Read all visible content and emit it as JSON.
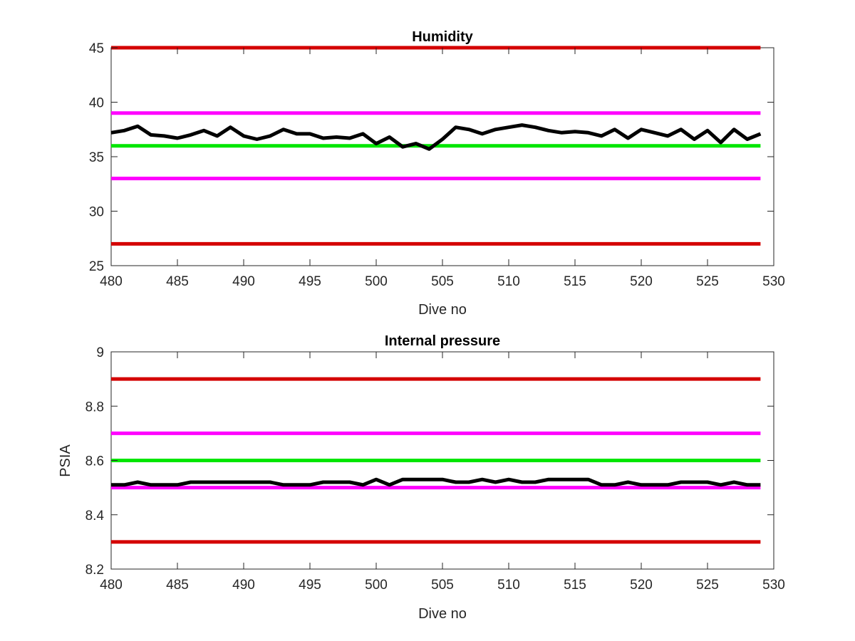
{
  "chart_data": [
    {
      "type": "line",
      "title": "Humidity",
      "xlabel": "Dive no",
      "ylabel": "",
      "xlim": [
        480,
        530
      ],
      "ylim": [
        25,
        45
      ],
      "xticks": [
        480,
        485,
        490,
        495,
        500,
        505,
        510,
        515,
        520,
        525,
        530
      ],
      "yticks": [
        25,
        30,
        35,
        40,
        45
      ],
      "grid": false,
      "reference_lines": [
        {
          "y": 45,
          "color": "#d40000"
        },
        {
          "y": 39,
          "color": "#ff00ff"
        },
        {
          "y": 36,
          "color": "#00e600"
        },
        {
          "y": 33,
          "color": "#ff00ff"
        },
        {
          "y": 27,
          "color": "#d40000"
        }
      ],
      "series": [
        {
          "color": "#000000",
          "x": [
            480,
            481,
            482,
            483,
            484,
            485,
            486,
            487,
            488,
            489,
            490,
            491,
            492,
            493,
            494,
            495,
            496,
            497,
            498,
            499,
            500,
            501,
            502,
            503,
            504,
            505,
            506,
            507,
            508,
            509,
            510,
            511,
            512,
            513,
            514,
            515,
            516,
            517,
            518,
            519,
            520,
            521,
            522,
            523,
            524,
            525,
            526,
            527,
            528,
            529
          ],
          "y": [
            37.2,
            37.4,
            37.8,
            37.0,
            36.9,
            36.7,
            37.0,
            37.4,
            36.9,
            37.7,
            36.9,
            36.6,
            36.9,
            37.5,
            37.1,
            37.1,
            36.7,
            36.8,
            36.7,
            37.1,
            36.2,
            36.8,
            35.9,
            36.2,
            35.7,
            36.6,
            37.7,
            37.5,
            37.1,
            37.5,
            37.7,
            37.9,
            37.7,
            37.4,
            37.2,
            37.3,
            37.2,
            36.9,
            37.5,
            36.7,
            37.5,
            37.2,
            36.9,
            37.5,
            36.6,
            37.4,
            36.3,
            37.5,
            36.6,
            37.1
          ]
        }
      ]
    },
    {
      "type": "line",
      "title": "Internal pressure",
      "xlabel": "Dive no",
      "ylabel": "PSIA",
      "xlim": [
        480,
        530
      ],
      "ylim": [
        8.2,
        9.0
      ],
      "xticks": [
        480,
        485,
        490,
        495,
        500,
        505,
        510,
        515,
        520,
        525,
        530
      ],
      "yticks": [
        "8.2",
        "8.4",
        "8.6",
        "8.8",
        "9"
      ],
      "grid": false,
      "reference_lines": [
        {
          "y": 8.9,
          "color": "#d40000"
        },
        {
          "y": 8.7,
          "color": "#ff00ff"
        },
        {
          "y": 8.6,
          "color": "#00e600"
        },
        {
          "y": 8.5,
          "color": "#ff00ff"
        },
        {
          "y": 8.3,
          "color": "#d40000"
        }
      ],
      "series": [
        {
          "color": "#000000",
          "x": [
            480,
            481,
            482,
            483,
            484,
            485,
            486,
            487,
            488,
            489,
            490,
            491,
            492,
            493,
            494,
            495,
            496,
            497,
            498,
            499,
            500,
            501,
            502,
            503,
            504,
            505,
            506,
            507,
            508,
            509,
            510,
            511,
            512,
            513,
            514,
            515,
            516,
            517,
            518,
            519,
            520,
            521,
            522,
            523,
            524,
            525,
            526,
            527,
            528,
            529
          ],
          "y": [
            8.51,
            8.51,
            8.52,
            8.51,
            8.51,
            8.51,
            8.52,
            8.52,
            8.52,
            8.52,
            8.52,
            8.52,
            8.52,
            8.51,
            8.51,
            8.51,
            8.52,
            8.52,
            8.52,
            8.51,
            8.53,
            8.51,
            8.53,
            8.53,
            8.53,
            8.53,
            8.52,
            8.52,
            8.53,
            8.52,
            8.53,
            8.52,
            8.52,
            8.53,
            8.53,
            8.53,
            8.53,
            8.51,
            8.51,
            8.52,
            8.51,
            8.51,
            8.51,
            8.52,
            8.52,
            8.52,
            8.51,
            8.52,
            8.51,
            8.51
          ]
        }
      ]
    }
  ]
}
